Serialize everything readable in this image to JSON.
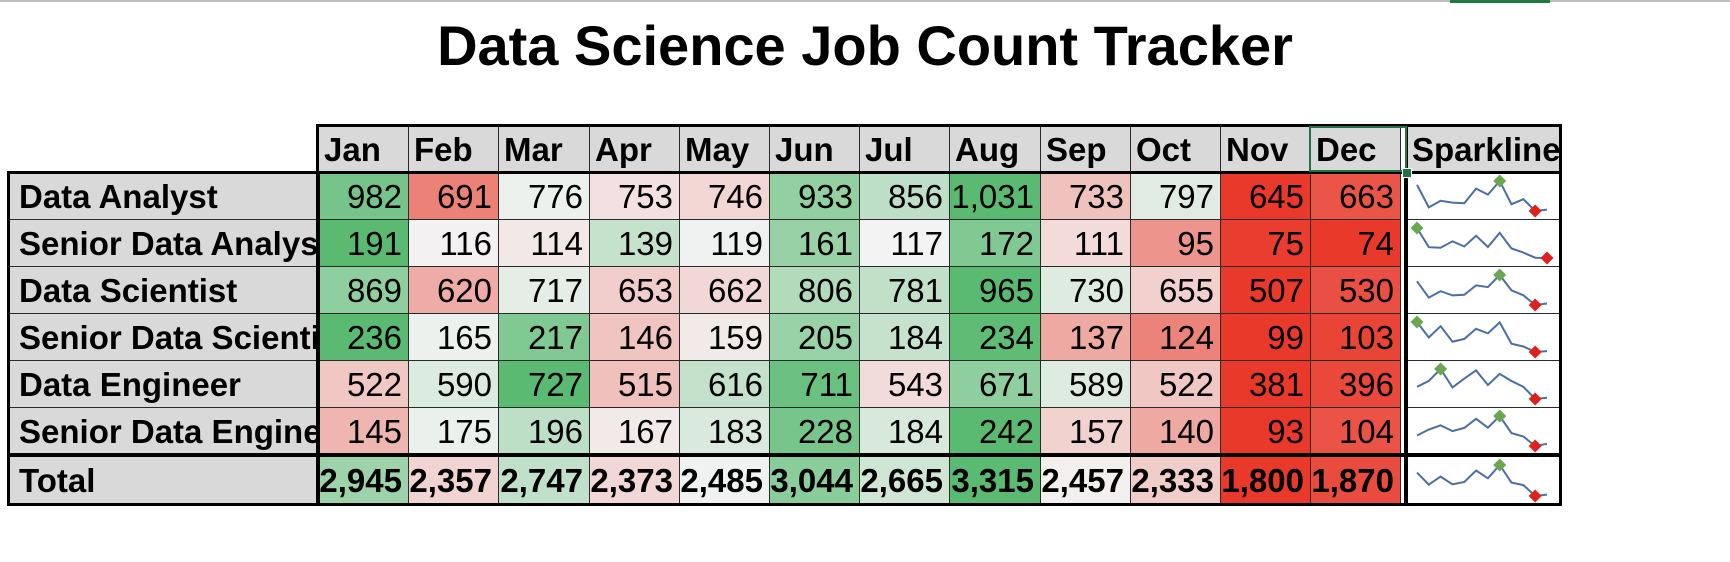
{
  "title": "Data Science Job Count Tracker",
  "months": [
    "Jan",
    "Feb",
    "Mar",
    "Apr",
    "May",
    "Jun",
    "Jul",
    "Aug",
    "Sep",
    "Oct",
    "Nov",
    "Dec"
  ],
  "sparkline_header": "Sparkline",
  "rows": [
    {
      "label": "Data Analyst",
      "values": [
        "982",
        "691",
        "776",
        "753",
        "746",
        "933",
        "856",
        "1,031",
        "733",
        "797",
        "645",
        "663"
      ]
    },
    {
      "label": "Senior Data Analyst",
      "values": [
        "191",
        "116",
        "114",
        "139",
        "119",
        "161",
        "117",
        "172",
        "111",
        "95",
        "75",
        "74"
      ]
    },
    {
      "label": "Data Scientist",
      "values": [
        "869",
        "620",
        "717",
        "653",
        "662",
        "806",
        "781",
        "965",
        "730",
        "655",
        "507",
        "530"
      ]
    },
    {
      "label": "Senior Data Scientist",
      "values": [
        "236",
        "165",
        "217",
        "146",
        "159",
        "205",
        "184",
        "234",
        "137",
        "124",
        "99",
        "103"
      ]
    },
    {
      "label": "Data Engineer",
      "values": [
        "522",
        "590",
        "727",
        "515",
        "616",
        "711",
        "543",
        "671",
        "589",
        "522",
        "381",
        "396"
      ]
    },
    {
      "label": "Senior Data Engineer",
      "values": [
        "145",
        "175",
        "196",
        "167",
        "183",
        "228",
        "184",
        "242",
        "157",
        "140",
        "93",
        "104"
      ]
    }
  ],
  "total": {
    "label": "Total",
    "values": [
      "2,945",
      "2,357",
      "2,747",
      "2,373",
      "2,485",
      "3,044",
      "2,665",
      "3,315",
      "2,457",
      "2,333",
      "1,800",
      "1,870"
    ]
  },
  "colors": {
    "header_fill": "#d9d9d9",
    "heat_high": "#5aba72",
    "heat_mid": "#f3f3f3",
    "heat_low": "#e8392a",
    "sparkline_line": "#4a6fa5",
    "sparkline_high_marker": "#6aa84f",
    "sparkline_low_marker": "#e0201b",
    "selection": "#217346"
  }
}
